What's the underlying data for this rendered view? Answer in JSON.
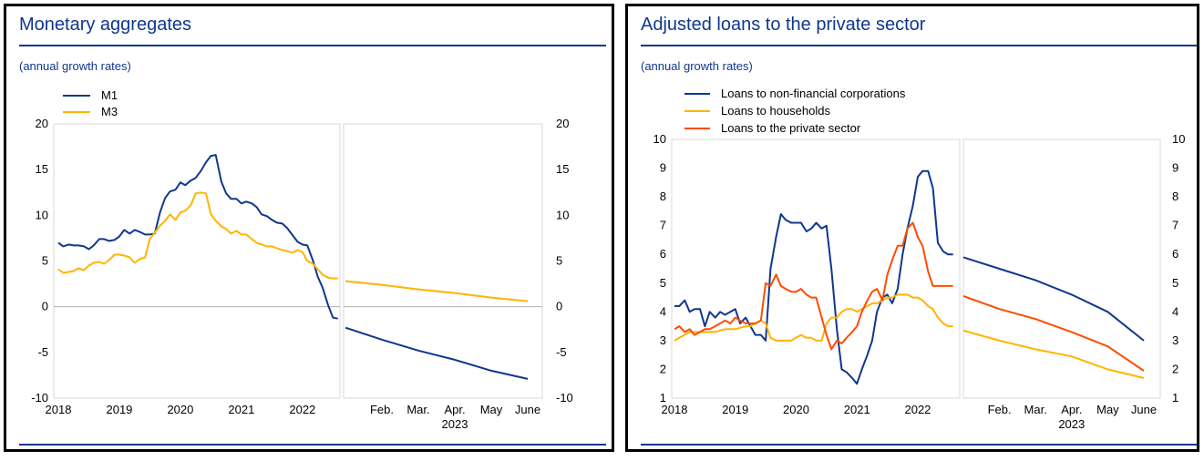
{
  "charts": [
    {
      "title": "Monetary aggregates",
      "subtitle": "(annual growth rates)",
      "chart_data": {
        "type": "line",
        "title": "Monetary aggregates",
        "subtitle": "(annual growth rates)",
        "xlabel": "",
        "ylabel": "",
        "ylim": [
          -10,
          20
        ],
        "yticks": [
          "20",
          "15",
          "10",
          "5",
          "0",
          "-5",
          "-10"
        ],
        "grid": false,
        "zero_line": true,
        "legend": "top-left",
        "history": {
          "x_ticks": [
            "2018",
            "2019",
            "2020",
            "2021",
            "2022"
          ],
          "x_range": [
            2018.0,
            2022.6
          ],
          "series": [
            {
              "name": "M1",
              "color": "#10378c",
              "x": [
                2018.0,
                2018.08,
                2018.17,
                2018.25,
                2018.33,
                2018.42,
                2018.5,
                2018.58,
                2018.67,
                2018.75,
                2018.83,
                2018.92,
                2019.0,
                2019.08,
                2019.17,
                2019.25,
                2019.33,
                2019.42,
                2019.5,
                2019.58,
                2019.67,
                2019.75,
                2019.83,
                2019.92,
                2020.0,
                2020.08,
                2020.17,
                2020.25,
                2020.33,
                2020.42,
                2020.5,
                2020.58,
                2020.67,
                2020.75,
                2020.83,
                2020.92,
                2021.0,
                2021.08,
                2021.17,
                2021.25,
                2021.33,
                2021.42,
                2021.5,
                2021.58,
                2021.67,
                2021.75,
                2021.83,
                2021.92,
                2022.0,
                2022.08,
                2022.17,
                2022.25,
                2022.33,
                2022.42,
                2022.5,
                2022.58
              ],
              "y": [
                7.0,
                6.6,
                6.8,
                6.7,
                6.7,
                6.6,
                6.3,
                6.7,
                7.4,
                7.4,
                7.2,
                7.3,
                7.7,
                8.4,
                8.0,
                8.4,
                8.2,
                7.9,
                7.9,
                8.0,
                10.4,
                11.9,
                12.6,
                12.8,
                13.6,
                13.3,
                13.8,
                14.1,
                14.8,
                15.8,
                16.5,
                16.6,
                13.7,
                12.4,
                11.8,
                11.8,
                11.3,
                11.5,
                11.3,
                10.9,
                10.1,
                9.9,
                9.5,
                9.2,
                9.1,
                8.6,
                7.9,
                7.1,
                6.8,
                6.7,
                5.1,
                3.3,
                2.1,
                0.2,
                -1.2,
                -1.3
              ]
            },
            {
              "name": "M3",
              "color": "#ffb400",
              "x": [
                2018.0,
                2018.08,
                2018.17,
                2018.25,
                2018.33,
                2018.42,
                2018.5,
                2018.58,
                2018.67,
                2018.75,
                2018.83,
                2018.92,
                2019.0,
                2019.08,
                2019.17,
                2019.25,
                2019.33,
                2019.42,
                2019.5,
                2019.58,
                2019.67,
                2019.75,
                2019.83,
                2019.92,
                2020.0,
                2020.08,
                2020.17,
                2020.25,
                2020.33,
                2020.42,
                2020.5,
                2020.58,
                2020.67,
                2020.75,
                2020.83,
                2020.92,
                2021.0,
                2021.08,
                2021.17,
                2021.25,
                2021.33,
                2021.42,
                2021.5,
                2021.58,
                2021.67,
                2021.75,
                2021.83,
                2021.92,
                2022.0,
                2022.08,
                2022.17,
                2022.25,
                2022.33,
                2022.42,
                2022.5,
                2022.58
              ],
              "y": [
                4.1,
                3.7,
                3.8,
                3.9,
                4.2,
                4.0,
                4.5,
                4.8,
                4.9,
                4.7,
                5.1,
                5.7,
                5.7,
                5.6,
                5.4,
                4.8,
                5.2,
                5.4,
                7.4,
                8.1,
                8.9,
                9.4,
                10.1,
                9.5,
                10.3,
                10.5,
                11.1,
                12.4,
                12.5,
                12.4,
                10.1,
                9.4,
                8.8,
                8.5,
                8.0,
                8.3,
                7.9,
                7.9,
                7.4,
                7.0,
                6.8,
                6.6,
                6.6,
                6.4,
                6.2,
                6.1,
                5.9,
                6.2,
                6.0,
                5.0,
                4.7,
                4.1,
                3.5,
                3.2,
                3.1,
                3.1
              ]
            }
          ]
        },
        "projection": {
          "x_ticks": [
            "Feb.",
            "Mar.",
            "Apr.",
            "May",
            "June"
          ],
          "x_group_label": "2023",
          "x_range": [
            1.0,
            6.0
          ],
          "series": [
            {
              "name": "M1",
              "color": "#10378c",
              "x": [
                1.0,
                2.0,
                3.0,
                4.0,
                5.0,
                6.0
              ],
              "y": [
                -2.3,
                -3.6,
                -4.8,
                -5.8,
                -7.0,
                -7.9
              ]
            },
            {
              "name": "M3",
              "color": "#ffb400",
              "x": [
                1.0,
                2.0,
                3.0,
                4.0,
                5.0,
                6.0
              ],
              "y": [
                2.8,
                2.4,
                1.9,
                1.5,
                1.0,
                0.6
              ]
            }
          ]
        }
      }
    },
    {
      "title": "Adjusted loans to the private sector",
      "subtitle": "(annual growth rates)",
      "chart_data": {
        "type": "line",
        "title": "Adjusted loans to the private sector",
        "subtitle": "(annual growth rates)",
        "xlabel": "",
        "ylabel": "",
        "ylim": [
          1,
          10
        ],
        "yticks": [
          "10",
          "9",
          "8",
          "7",
          "6",
          "5",
          "4",
          "3",
          "2",
          "1"
        ],
        "grid": false,
        "zero_line": false,
        "legend": "top-left",
        "history": {
          "x_ticks": [
            "2018",
            "2019",
            "2020",
            "2021",
            "2022"
          ],
          "x_range": [
            2018.0,
            2022.6
          ],
          "series": [
            {
              "name": "Loans to non-financial corporations",
              "color": "#10378c",
              "x": [
                2018.0,
                2018.08,
                2018.17,
                2018.25,
                2018.33,
                2018.42,
                2018.5,
                2018.58,
                2018.67,
                2018.75,
                2018.83,
                2018.92,
                2019.0,
                2019.08,
                2019.17,
                2019.25,
                2019.33,
                2019.42,
                2019.5,
                2019.58,
                2019.67,
                2019.75,
                2019.83,
                2019.92,
                2020.0,
                2020.08,
                2020.17,
                2020.25,
                2020.33,
                2020.42,
                2020.5,
                2020.58,
                2020.67,
                2020.75,
                2020.83,
                2020.92,
                2021.0,
                2021.08,
                2021.17,
                2021.25,
                2021.33,
                2021.42,
                2021.5,
                2021.58,
                2021.67,
                2021.75,
                2021.83,
                2021.92,
                2022.0,
                2022.08,
                2022.17,
                2022.25,
                2022.33,
                2022.42,
                2022.5,
                2022.58
              ],
              "y": [
                4.2,
                4.2,
                4.4,
                4.0,
                4.1,
                4.1,
                3.5,
                4.0,
                3.8,
                4.0,
                3.9,
                4.0,
                4.1,
                3.6,
                3.8,
                3.5,
                3.2,
                3.2,
                3.0,
                5.5,
                6.6,
                7.4,
                7.2,
                7.1,
                7.1,
                7.1,
                6.8,
                6.9,
                7.1,
                6.9,
                7.0,
                5.5,
                3.4,
                2.0,
                1.9,
                1.7,
                1.5,
                2.0,
                2.5,
                3.0,
                4.0,
                4.5,
                4.6,
                4.3,
                4.8,
                6.0,
                6.9,
                7.7,
                8.7,
                8.9,
                8.9,
                8.3,
                6.4,
                6.1,
                6.0,
                6.0
              ]
            },
            {
              "name": "Loans to households",
              "color": "#ffb400",
              "x": [
                2018.0,
                2018.08,
                2018.17,
                2018.25,
                2018.33,
                2018.42,
                2018.5,
                2018.58,
                2018.67,
                2018.75,
                2018.83,
                2018.92,
                2019.0,
                2019.08,
                2019.17,
                2019.25,
                2019.33,
                2019.42,
                2019.5,
                2019.58,
                2019.67,
                2019.75,
                2019.83,
                2019.92,
                2020.0,
                2020.08,
                2020.17,
                2020.25,
                2020.33,
                2020.42,
                2020.5,
                2020.58,
                2020.67,
                2020.75,
                2020.83,
                2020.92,
                2021.0,
                2021.08,
                2021.17,
                2021.25,
                2021.33,
                2021.42,
                2021.5,
                2021.58,
                2021.67,
                2021.75,
                2021.83,
                2021.92,
                2022.0,
                2022.08,
                2022.17,
                2022.25,
                2022.33,
                2022.42,
                2022.5,
                2022.58
              ],
              "y": [
                3.0,
                3.1,
                3.2,
                3.3,
                3.3,
                3.3,
                3.3,
                3.3,
                3.3,
                3.35,
                3.4,
                3.4,
                3.4,
                3.45,
                3.5,
                3.5,
                3.6,
                3.7,
                3.6,
                3.1,
                3.0,
                3.0,
                3.0,
                3.0,
                3.1,
                3.2,
                3.1,
                3.1,
                3.0,
                3.0,
                3.6,
                3.8,
                3.8,
                4.0,
                4.1,
                4.1,
                4.0,
                4.1,
                4.2,
                4.3,
                4.3,
                4.4,
                4.5,
                4.5,
                4.6,
                4.6,
                4.6,
                4.5,
                4.5,
                4.4,
                4.2,
                4.1,
                3.8,
                3.6,
                3.5,
                3.5
              ]
            },
            {
              "name": "Loans to the private sector",
              "color": "#ff4b00",
              "x": [
                2018.0,
                2018.08,
                2018.17,
                2018.25,
                2018.33,
                2018.42,
                2018.5,
                2018.58,
                2018.67,
                2018.75,
                2018.83,
                2018.92,
                2019.0,
                2019.08,
                2019.17,
                2019.25,
                2019.33,
                2019.42,
                2019.5,
                2019.58,
                2019.67,
                2019.75,
                2019.83,
                2019.92,
                2020.0,
                2020.08,
                2020.17,
                2020.25,
                2020.33,
                2020.42,
                2020.5,
                2020.58,
                2020.67,
                2020.75,
                2020.83,
                2020.92,
                2021.0,
                2021.08,
                2021.17,
                2021.25,
                2021.33,
                2021.42,
                2021.5,
                2021.58,
                2021.67,
                2021.75,
                2021.83,
                2021.92,
                2022.0,
                2022.08,
                2022.17,
                2022.25,
                2022.33,
                2022.42,
                2022.5,
                2022.58
              ],
              "y": [
                3.4,
                3.5,
                3.3,
                3.4,
                3.2,
                3.3,
                3.4,
                3.4,
                3.5,
                3.6,
                3.7,
                3.6,
                3.8,
                3.7,
                3.6,
                3.6,
                3.6,
                3.7,
                5.0,
                4.9,
                5.3,
                4.9,
                4.8,
                4.7,
                4.7,
                4.8,
                4.6,
                4.5,
                4.5,
                3.8,
                3.2,
                2.7,
                3.0,
                2.9,
                3.1,
                3.3,
                3.5,
                4.0,
                4.4,
                4.7,
                4.8,
                4.4,
                5.3,
                5.8,
                6.3,
                6.3,
                6.9,
                7.1,
                6.6,
                6.3,
                5.4,
                4.9,
                4.9,
                4.9,
                4.9,
                4.9
              ]
            }
          ]
        },
        "projection": {
          "x_ticks": [
            "Feb.",
            "Mar.",
            "Apr.",
            "May",
            "June"
          ],
          "x_group_label": "2023",
          "x_range": [
            1.0,
            6.0
          ],
          "series": [
            {
              "name": "Loans to non-financial corporations",
              "color": "#10378c",
              "x": [
                1.0,
                2.0,
                3.0,
                4.0,
                5.0,
                6.0
              ],
              "y": [
                5.9,
                5.5,
                5.1,
                4.6,
                4.0,
                3.0
              ]
            },
            {
              "name": "Loans to households",
              "color": "#ffb400",
              "x": [
                1.0,
                2.0,
                3.0,
                4.0,
                5.0,
                6.0
              ],
              "y": [
                3.35,
                3.0,
                2.7,
                2.45,
                2.0,
                1.7
              ]
            },
            {
              "name": "Loans to the private sector",
              "color": "#ff4b00",
              "x": [
                1.0,
                2.0,
                3.0,
                4.0,
                5.0,
                6.0
              ],
              "y": [
                4.55,
                4.1,
                3.75,
                3.3,
                2.8,
                1.95
              ]
            }
          ]
        }
      }
    }
  ]
}
